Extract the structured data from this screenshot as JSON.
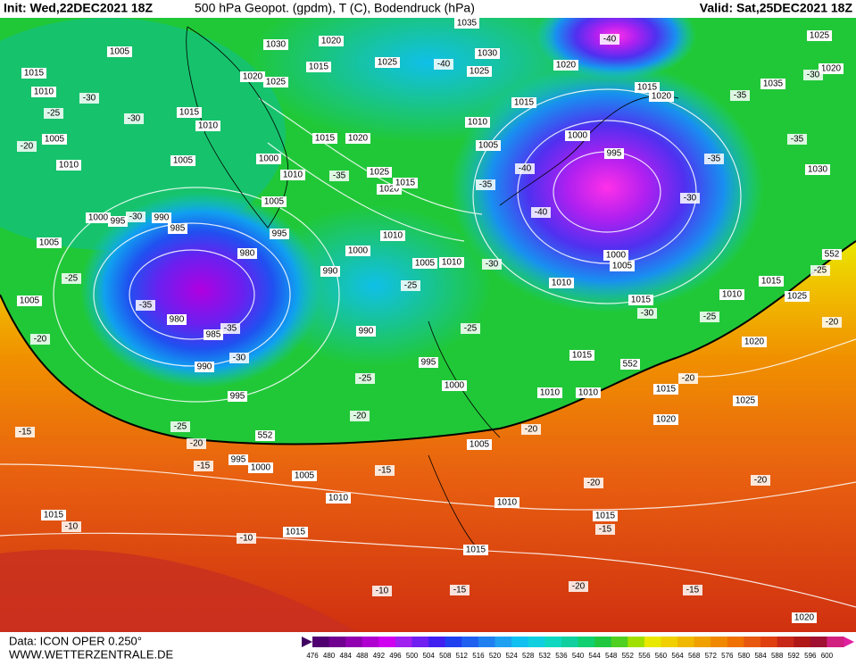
{
  "header": {
    "init": "Init: Wed,22DEC2021 18Z",
    "title": "500 hPa Geopot. (gpdm), T (C), Bodendruck (hPa)",
    "valid": "Valid: Sat,25DEC2021 18Z"
  },
  "footer": {
    "source": "Data: ICON OPER 0.250°",
    "site": "WWW.WETTERZENTRALE.DE"
  },
  "map": {
    "pressure_labels": [
      "1035",
      "1030",
      "1020",
      "1005",
      "1015",
      "1010",
      "1020",
      "1025",
      "1015",
      "1025",
      "1030",
      "1025",
      "1015",
      "1010",
      "1010",
      "1015",
      "1020",
      "1015",
      "1020",
      "1025",
      "1020",
      "1035",
      "1030",
      "1005",
      "1010",
      "1005",
      "1000",
      "1010",
      "1015",
      "1020",
      "1025",
      "1020",
      "1015",
      "1005",
      "995",
      "1000",
      "995",
      "990",
      "985",
      "980",
      "980",
      "985",
      "990",
      "995",
      "1005",
      "1005",
      "1010",
      "1000",
      "990",
      "990",
      "995",
      "1000",
      "1005",
      "1010",
      "1005",
      "1000",
      "995",
      "1000",
      "1005",
      "1010",
      "1015",
      "1010",
      "1015",
      "1025",
      "1020",
      "1025",
      "1015",
      "1015",
      "1020",
      "1010",
      "1010",
      "1005",
      "995",
      "1000",
      "1005",
      "1010",
      "1010",
      "1015",
      "1015",
      "1015",
      "1015",
      "1020"
    ],
    "temperature_labels": [
      "-30",
      "-25",
      "-30",
      "-20",
      "-30",
      "-25",
      "-35",
      "-35",
      "-30",
      "-20",
      "-25",
      "-25",
      "-30",
      "-25",
      "-20",
      "-25",
      "-20",
      "-15",
      "-15",
      "-15",
      "-20",
      "-20",
      "-15",
      "-20",
      "-10",
      "-10",
      "-10",
      "-15",
      "-20",
      "-15",
      "-40",
      "-40",
      "-40",
      "-40",
      "-35",
      "-35",
      "-30",
      "-35",
      "-35",
      "-35",
      "-30",
      "-30",
      "-25",
      "-25",
      "-20",
      "-20"
    ],
    "geopotential_labels": [
      "552",
      "552",
      "552"
    ]
  },
  "colorbar": {
    "values": [
      476,
      480,
      484,
      488,
      492,
      496,
      500,
      504,
      508,
      512,
      516,
      520,
      524,
      528,
      532,
      536,
      540,
      544,
      548,
      552,
      556,
      560,
      564,
      568,
      572,
      576,
      580,
      584,
      588,
      592,
      596,
      600
    ]
  }
}
